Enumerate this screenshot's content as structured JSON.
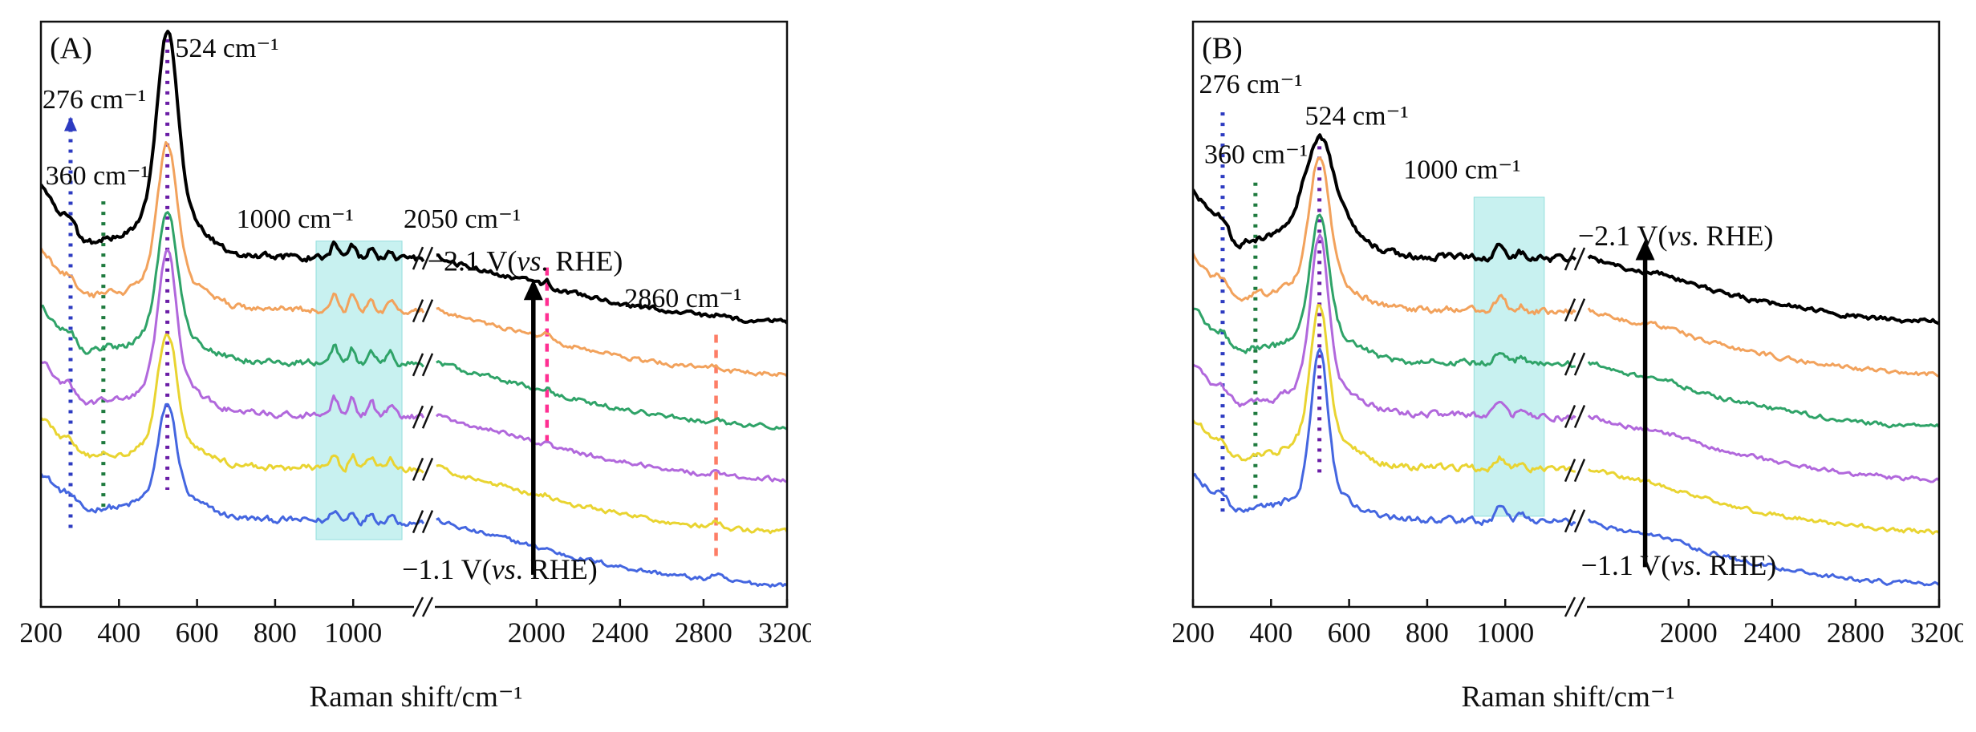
{
  "figure_caption": "",
  "chart_data": {
    "type": "line",
    "title": "",
    "x_axis": {
      "label": "Raman shift/cm⁻¹",
      "ticks_left": [
        200,
        400,
        600,
        800,
        1000
      ],
      "ticks_right": [
        2000,
        2400,
        2800,
        3200
      ],
      "range_shown": [
        200,
        3200
      ],
      "has_axis_break": true,
      "mapping": {
        "seg1": {
          "x0": 200,
          "x1": 1150,
          "f0": 0.0,
          "f1": 0.497
        },
        "seg2": {
          "x0": 1520,
          "x1": 3200,
          "f0": 0.53,
          "f1": 1.0
        }
      },
      "break_frac": 0.514
    },
    "y_axis": {
      "label": "",
      "unit": "arb. intensity, spectra vertically offset"
    },
    "colors": {
      "curve_top_black": "#000000",
      "curve_orange": "#f2a25c",
      "curve_green": "#2fa368",
      "curve_purple": "#b168dc",
      "curve_yellow": "#e9d431",
      "curve_blue": "#4466e0",
      "guide_276": "#2d3bc1",
      "guide_360": "#1e7a3e",
      "guide_524": "#6a1da6",
      "guide_2050": "#ff2f92",
      "guide_2860": "#fd7d66",
      "highlight": "#c8f1f0"
    },
    "panels": [
      {
        "id": "A",
        "label": "(A)",
        "n_series": 6,
        "potential_bottom": "−1.1 V(vs. RHE)",
        "potential_top": "−2.1 V(vs. RHE)",
        "annotated_peaks_cm1": [
          276,
          360,
          524,
          1000,
          2050,
          2860
        ],
        "series": [
          {
            "name": "curve-1-top",
            "color": "#000000",
            "width": 4,
            "off": 58,
            "edge": 13,
            "h276": 2.6,
            "h360": 1.6,
            "h524": 30,
            "w524": 26,
            "hbase": 8,
            "mult": 2.3,
            "drop": 11,
            "k2050": 1.0,
            "k2860": 0.45
          },
          {
            "name": "curve-2",
            "color": "#f2a25c",
            "width": 3,
            "off": 49,
            "edge": 11,
            "h276": 2.2,
            "h360": 1.4,
            "h524": 22,
            "w524": 24,
            "hbase": 6,
            "mult": 2.5,
            "drop": 11,
            "k2050": 0.8,
            "k2860": 0.45
          },
          {
            "name": "curve-3",
            "color": "#2fa368",
            "width": 3,
            "off": 40,
            "edge": 10,
            "h276": 2.0,
            "h360": 1.3,
            "h524": 20,
            "w524": 24,
            "hbase": 5.5,
            "mult": 2.7,
            "drop": 11,
            "k2050": 0.6,
            "k2860": 0.45
          },
          {
            "name": "curve-4",
            "color": "#b168dc",
            "width": 3,
            "off": 31,
            "edge": 9.5,
            "h276": 1.8,
            "h360": 1.2,
            "h524": 22,
            "w524": 23,
            "hbase": 5.5,
            "mult": 2.9,
            "drop": 11,
            "k2050": 0.5,
            "k2860": 0.6
          },
          {
            "name": "curve-5",
            "color": "#e9d431",
            "width": 3,
            "off": 22,
            "edge": 9,
            "h276": 1.7,
            "h360": 1.1,
            "h524": 18,
            "w524": 23,
            "hbase": 5,
            "mult": 2.6,
            "drop": 11,
            "k2050": 0.5,
            "k2860": 0.9
          },
          {
            "name": "curve-6-bottom",
            "color": "#4466e0",
            "width": 3,
            "off": 13,
            "edge": 8.5,
            "h276": 1.5,
            "h360": 1.0,
            "h524": 15,
            "w524": 22,
            "hbase": 4.5,
            "mult": 1.9,
            "drop": 11,
            "k2050": 0.4,
            "k2860": 1.0
          }
        ],
        "guides": [
          {
            "x": 276,
            "color": "#2d3bc1",
            "top": 0.165,
            "bot": 0.875,
            "dash": "4 9",
            "w": 5,
            "arrow_top": true
          },
          {
            "x": 360,
            "color": "#1e7a3e",
            "top": 0.307,
            "bot": 0.84,
            "dash": "4 9",
            "w": 5
          },
          {
            "x": 524,
            "color": "#6a1da6",
            "top": 0.03,
            "bot": 0.8,
            "dash": "4 9",
            "w": 5
          },
          {
            "x": 2050,
            "color": "#ff2f92",
            "top": 0.42,
            "bot": 0.72,
            "dash": "10 9",
            "w": 4.5
          },
          {
            "x": 2860,
            "color": "#fd7d66",
            "top": 0.535,
            "bot": 0.92,
            "dash": "10 9",
            "w": 4.5
          }
        ],
        "highlight": {
          "x0": 905,
          "x1": 1125,
          "top": 0.375,
          "bot": 0.885,
          "fill": "#c8f1f0",
          "edge": "#93dedd"
        },
        "arrow": {
          "xf": 0.66,
          "y0": 0.945,
          "y1": 0.44
        },
        "annotations": [
          {
            "name": "panel-label",
            "xf": 0.012,
            "yf": 0.062,
            "size": 38,
            "parts": [
              {
                "t": "(A)"
              }
            ]
          },
          {
            "name": "peak-524-label",
            "xf": 0.18,
            "yf": 0.06,
            "size": 34,
            "parts": [
              {
                "t": "524 cm⁻¹"
              }
            ]
          },
          {
            "name": "peak-276-label",
            "xf": 0.002,
            "yf": 0.148,
            "size": 34,
            "parts": [
              {
                "t": "276 cm⁻¹"
              }
            ]
          },
          {
            "name": "peak-360-label",
            "xf": 0.006,
            "yf": 0.278,
            "size": 34,
            "parts": [
              {
                "t": "360 cm⁻¹"
              }
            ]
          },
          {
            "name": "peak-1000-label",
            "xf": 0.262,
            "yf": 0.352,
            "size": 34,
            "parts": [
              {
                "t": "1000 cm⁻¹"
              }
            ]
          },
          {
            "name": "peak-2050-label",
            "xf": 0.486,
            "yf": 0.352,
            "size": 34,
            "parts": [
              {
                "t": "2050 cm⁻¹"
              }
            ]
          },
          {
            "name": "potential-top-label",
            "xf": 0.518,
            "yf": 0.425,
            "size": 36,
            "parts": [
              {
                "t": "−2.1 V("
              },
              {
                "t": "vs",
                "i": true
              },
              {
                "t": ". RHE)"
              }
            ]
          },
          {
            "name": "peak-2860-label",
            "xf": 0.782,
            "yf": 0.488,
            "size": 34,
            "parts": [
              {
                "t": "2860 cm⁻¹"
              }
            ]
          },
          {
            "name": "potential-bottom-label",
            "xf": 0.484,
            "yf": 0.952,
            "size": 36,
            "parts": [
              {
                "t": "−1.1 V("
              },
              {
                "t": "vs",
                "i": true
              },
              {
                "t": ". RHE)"
              }
            ]
          }
        ]
      },
      {
        "id": "B",
        "label": "(B)",
        "n_series": 6,
        "potential_bottom": "−1.1 V(vs. RHE)",
        "potential_top": "−2.1 V(vs. RHE)",
        "annotated_peaks_cm1": [
          276,
          360,
          524,
          1000
        ],
        "series": [
          {
            "name": "curve-1-top",
            "color": "#000000",
            "width": 4,
            "off": 58,
            "edge": 12,
            "h276": 2.4,
            "h360": 1.5,
            "h524": 12,
            "w524": 34,
            "hbase": 8,
            "mult": 2.0,
            "drop": 11
          },
          {
            "name": "curve-2",
            "color": "#f2a25c",
            "width": 3,
            "off": 49,
            "edge": 10,
            "h276": 2.0,
            "h360": 1.3,
            "h524": 20,
            "w524": 24,
            "hbase": 6,
            "mult": 2.2,
            "drop": 11
          },
          {
            "name": "curve-3",
            "color": "#2fa368",
            "width": 3,
            "off": 40,
            "edge": 9.5,
            "h276": 1.9,
            "h360": 1.2,
            "h524": 19,
            "w524": 23,
            "hbase": 5.5,
            "mult": 2.2,
            "drop": 11
          },
          {
            "name": "curve-4",
            "color": "#b168dc",
            "width": 3,
            "off": 31,
            "edge": 9,
            "h276": 1.7,
            "h360": 1.1,
            "h524": 24,
            "w524": 22,
            "hbase": 6,
            "mult": 2.0,
            "drop": 11
          },
          {
            "name": "curve-5",
            "color": "#e9d431",
            "width": 3,
            "off": 22,
            "edge": 8.5,
            "h276": 1.6,
            "h360": 1.0,
            "h524": 22,
            "w524": 22,
            "hbase": 5.5,
            "mult": 1.8,
            "drop": 11
          },
          {
            "name": "curve-6-bottom",
            "color": "#4466e0",
            "width": 3,
            "off": 13,
            "edge": 8,
            "h276": 1.5,
            "h360": 1.0,
            "h524": 24,
            "w524": 21,
            "hbase": 5,
            "mult": 2.6,
            "drop": 11
          }
        ],
        "guides": [
          {
            "x": 276,
            "color": "#2d3bc1",
            "top": 0.155,
            "bot": 0.845,
            "dash": "4 9",
            "w": 5
          },
          {
            "x": 360,
            "color": "#1e7a3e",
            "top": 0.275,
            "bot": 0.815,
            "dash": "4 9",
            "w": 5
          },
          {
            "x": 524,
            "color": "#6a1da6",
            "top": 0.195,
            "bot": 0.775,
            "dash": "4 9",
            "w": 5
          }
        ],
        "highlight": {
          "x0": 920,
          "x1": 1100,
          "top": 0.3,
          "bot": 0.845,
          "fill": "#c8f1f0",
          "edge": "#93dedd"
        },
        "arrow": {
          "xf": 0.606,
          "y0": 0.932,
          "y1": 0.372
        },
        "annotations": [
          {
            "name": "panel-label",
            "xf": 0.012,
            "yf": 0.062,
            "size": 38,
            "parts": [
              {
                "t": "(B)"
              }
            ]
          },
          {
            "name": "peak-276-label",
            "xf": 0.008,
            "yf": 0.122,
            "size": 34,
            "parts": [
              {
                "t": "276 cm⁻¹"
              }
            ]
          },
          {
            "name": "peak-524-label",
            "xf": 0.15,
            "yf": 0.176,
            "size": 34,
            "parts": [
              {
                "t": "524 cm⁻¹"
              }
            ]
          },
          {
            "name": "peak-360-label",
            "xf": 0.015,
            "yf": 0.242,
            "size": 34,
            "parts": [
              {
                "t": "360 cm⁻¹"
              }
            ]
          },
          {
            "name": "peak-1000-label",
            "xf": 0.282,
            "yf": 0.268,
            "size": 34,
            "parts": [
              {
                "t": "1000 cm⁻¹"
              }
            ]
          },
          {
            "name": "potential-top-label",
            "xf": 0.516,
            "yf": 0.382,
            "size": 36,
            "parts": [
              {
                "t": "−2.1 V("
              },
              {
                "t": "vs",
                "i": true
              },
              {
                "t": ". RHE)"
              }
            ]
          },
          {
            "name": "potential-bottom-label",
            "xf": 0.52,
            "yf": 0.945,
            "size": 36,
            "parts": [
              {
                "t": "−1.1 V("
              },
              {
                "t": "vs",
                "i": true
              },
              {
                "t": ". RHE)"
              }
            ]
          }
        ]
      }
    ]
  }
}
